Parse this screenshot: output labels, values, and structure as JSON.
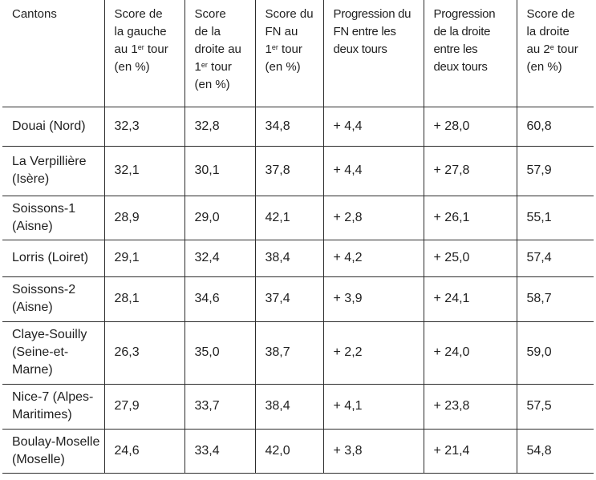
{
  "page": {
    "background_color": "#ffffff",
    "text_color": "#1f1f1f",
    "border_color": "#2d2d2d"
  },
  "table": {
    "columns": [
      {
        "key": "canton",
        "label": "Cantons"
      },
      {
        "key": "score-gauche-t1",
        "label": "Score de\nla gauche\nau 1^{er} tour\n(en %)"
      },
      {
        "key": "score-droite-t1",
        "label": "Score\nde la\ndroite au\n1^{er} tour\n(en %)"
      },
      {
        "key": "score-fn-t1",
        "label": "Score du\nFN au\n1^{er} tour\n(en %)"
      },
      {
        "key": "progression-fn",
        "label": "Progression du\nFN entre les\ndeux tours"
      },
      {
        "key": "progression-droite",
        "label": "Progression\nde la droite\nentre les\ndeux tours"
      },
      {
        "key": "score-droite-t2",
        "label": "Score de\nla droite\nau 2^{e} tour\n(en %)"
      }
    ],
    "rows": [
      {
        "canton": "Douai (Nord)",
        "cells": [
          "32,3",
          "32,8",
          "34,8",
          "+ 4,4",
          "+ 28,0",
          "60,8"
        ]
      },
      {
        "canton": "La Verpillière\n(Isère)",
        "cells": [
          "32,1",
          "30,1",
          "37,8",
          "+ 4,4",
          "+ 27,8",
          "57,9"
        ]
      },
      {
        "canton": "Soissons-1\n(Aisne)",
        "cells": [
          "28,9",
          "29,0",
          "42,1",
          "+ 2,8",
          "+ 26,1",
          "55,1"
        ]
      },
      {
        "canton": "Lorris (Loiret)",
        "cells": [
          "29,1",
          "32,4",
          "38,4",
          "+ 4,2",
          "+ 25,0",
          "57,4"
        ]
      },
      {
        "canton": "Soissons-2\n(Aisne)",
        "cells": [
          "28,1",
          "34,6",
          "37,4",
          "+ 3,9",
          "+ 24,1",
          "58,7"
        ]
      },
      {
        "canton": "Claye-Souilly\n(Seine-et-\nMarne)",
        "cells": [
          "26,3",
          "35,0",
          "38,7",
          "+ 2,2",
          "+ 24,0",
          "59,0"
        ]
      },
      {
        "canton": "Nice-7 (Alpes-\nMaritimes)",
        "cells": [
          "27,9",
          "33,7",
          "38,4",
          "+ 4,1",
          "+ 23,8",
          "57,5"
        ]
      },
      {
        "canton": "Boulay-Moselle\n(Moselle)",
        "cells": [
          "24,6",
          "33,4",
          "42,0",
          "+ 3,8",
          "+ 21,4",
          "54,8"
        ]
      }
    ]
  }
}
